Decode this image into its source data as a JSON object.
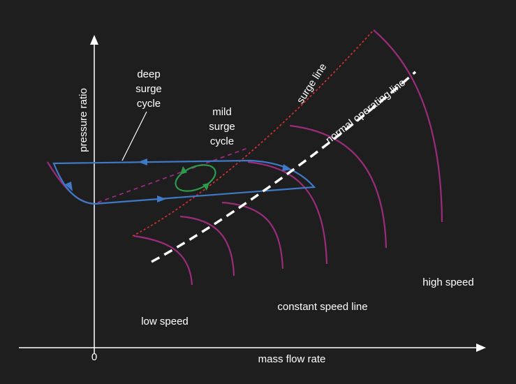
{
  "axes": {
    "y_label": "pressure ratio",
    "x_label": "mass flow rate",
    "origin": "0"
  },
  "annotations": {
    "deep_surge_cycle": [
      "deep",
      "surge",
      "cycle"
    ],
    "mild_surge_cycle": [
      "mild",
      "surge",
      "cycle"
    ],
    "surge_line": "surge line",
    "normal_operating_line": "normal operating line",
    "high_speed": "high speed",
    "constant_speed_line": "constant speed line",
    "low_speed": "low speed"
  }
}
